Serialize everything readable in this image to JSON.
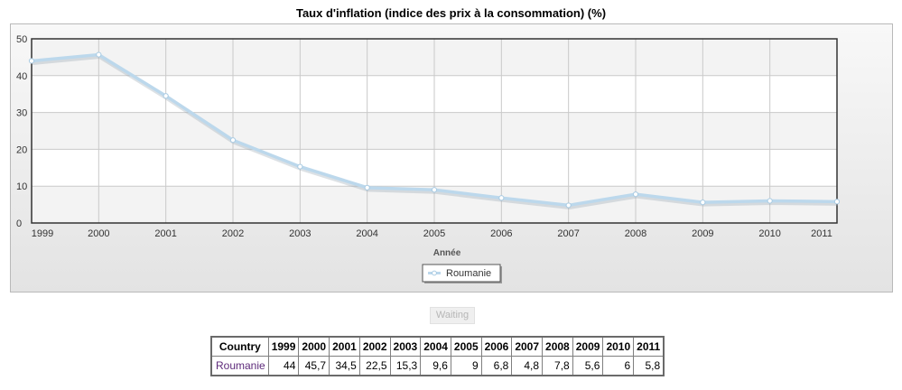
{
  "chart_data": {
    "type": "line",
    "title": "Taux d'inflation (indice des prix à la consommation) (%)",
    "xlabel": "Année",
    "ylabel": "",
    "x": [
      "1999",
      "2000",
      "2001",
      "2002",
      "2003",
      "2004",
      "2005",
      "2006",
      "2007",
      "2008",
      "2009",
      "2010",
      "2011"
    ],
    "yticks": [
      "0",
      "10",
      "20",
      "30",
      "40",
      "50"
    ],
    "ylim": [
      0,
      50
    ],
    "grid": true,
    "legend_position": "bottom-center",
    "series": [
      {
        "name": "Roumanie",
        "values": [
          44,
          45.7,
          34.5,
          22.5,
          15.3,
          9.6,
          9,
          6.8,
          4.8,
          7.8,
          5.6,
          6,
          5.8
        ],
        "color": "#bcd8ec"
      }
    ]
  },
  "waiting_label": "Waiting",
  "table": {
    "header_label": "Country",
    "columns": [
      "1999",
      "2000",
      "2001",
      "2002",
      "2003",
      "2004",
      "2005",
      "2006",
      "2007",
      "2008",
      "2009",
      "2010",
      "2011"
    ],
    "rows": [
      {
        "country": "Roumanie",
        "cells": [
          "44",
          "45,7",
          "34,5",
          "22,5",
          "15,3",
          "9,6",
          "9",
          "6,8",
          "4,8",
          "7,8",
          "5,6",
          "6",
          "5,8"
        ]
      }
    ]
  }
}
